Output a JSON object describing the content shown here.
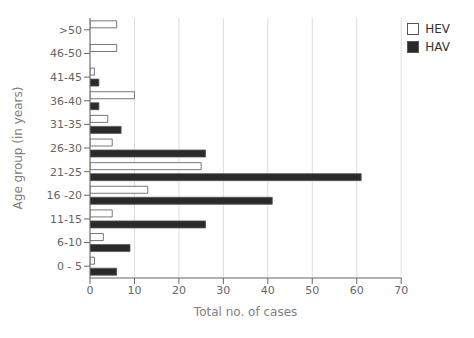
{
  "chart_data": {
    "type": "bar",
    "orientation": "horizontal",
    "xlabel": "Total no. of cases",
    "ylabel": "Age group (in years)",
    "categories": [
      "0 - 5",
      "6-10",
      "11-15",
      "16 -20",
      "21-25",
      "26-30",
      "31-35",
      "36-40",
      "41-45",
      "46-50",
      ">50"
    ],
    "series": [
      {
        "name": "HEV",
        "color": "#ffffff",
        "values": [
          1,
          3,
          5,
          13,
          25,
          5,
          4,
          10,
          1,
          6,
          6
        ]
      },
      {
        "name": "HAV",
        "color": "#2a2a2a",
        "values": [
          6,
          9,
          26,
          41,
          61,
          26,
          7,
          2,
          2,
          0,
          0
        ]
      }
    ],
    "xlim": [
      0,
      70
    ],
    "xticks": [
      0,
      10,
      20,
      30,
      40,
      50,
      60,
      70
    ],
    "grid": true,
    "legend": "upper right"
  }
}
